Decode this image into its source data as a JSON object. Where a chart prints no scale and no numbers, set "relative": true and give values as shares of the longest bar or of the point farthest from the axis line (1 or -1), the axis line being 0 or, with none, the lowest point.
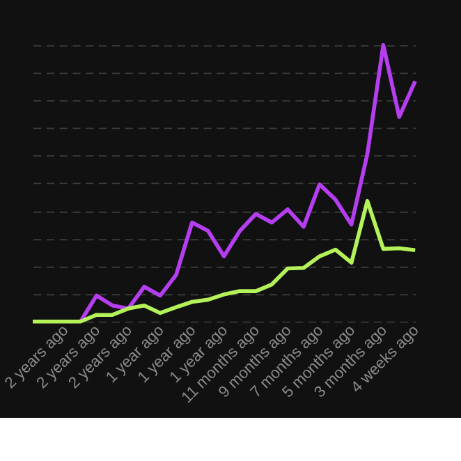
{
  "chart_data": {
    "type": "line",
    "relative": true,
    "grid": "y",
    "line_style": "solid",
    "marker": "none",
    "categories": [
      null,
      null,
      "2 years ago",
      null,
      "2 years ago",
      null,
      "2 years ago",
      null,
      "1 year ago",
      null,
      "1 year ago",
      null,
      "1 year ago",
      null,
      "11 months ago",
      null,
      "9 months ago",
      null,
      "7 months ago",
      null,
      "5 months ago",
      null,
      "3 months ago",
      null,
      "4 weeks ago"
    ],
    "series": [
      {
        "color": "#b53ef0",
        "values": [
          null,
          null,
          null,
          0,
          0.094,
          0.058,
          0.047,
          0.126,
          0.094,
          0.169,
          0.358,
          0.328,
          0.236,
          0.328,
          0.389,
          0.358,
          0.406,
          0.343,
          0.496,
          0.441,
          0.351,
          0.606,
          1,
          0.74,
          0.869
        ]
      },
      {
        "color": "#b5f25a",
        "values": [
          0,
          0,
          0,
          0,
          0.024,
          0.024,
          0.047,
          0.058,
          0.031,
          0.052,
          0.071,
          0.079,
          0.098,
          0.11,
          0.11,
          0.134,
          0.192,
          0.194,
          0.236,
          0.26,
          0.213,
          0.436,
          0.263,
          0.265,
          0.258
        ]
      }
    ]
  }
}
